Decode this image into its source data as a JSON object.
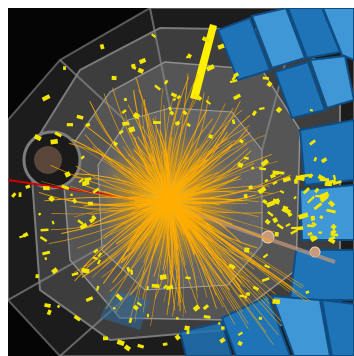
{
  "image": {
    "subject": "particle-collision-event-display",
    "colors": {
      "background": "#050505",
      "detector_dark": "#1c1c1c",
      "detector_mid": "#4a4a4a",
      "detector_light": "#8a8a8a",
      "muon_chamber": "#1f74b8",
      "muon_chamber_light": "#3f97d6",
      "muon_chamber_dark": "#0f4e85",
      "tracks": "#ffae00",
      "energy_deposits": "#f2e600",
      "highlight_track": "#d00000",
      "jet_bar": "#fff000",
      "muon_marker": "#c89a7a",
      "frame_border": "#ffffff"
    }
  }
}
